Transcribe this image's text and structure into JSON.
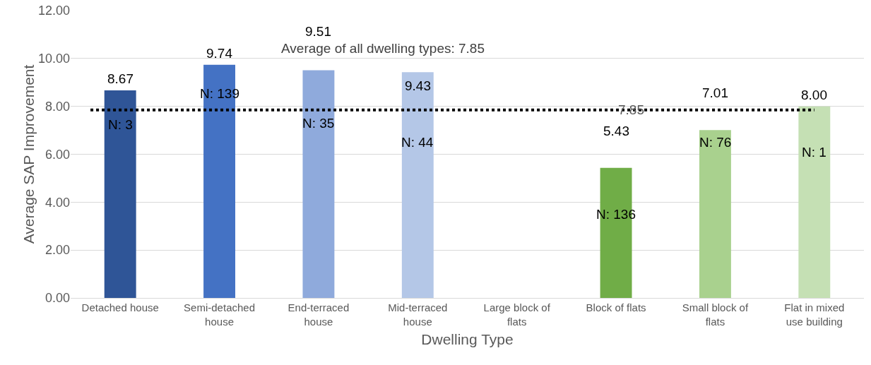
{
  "chart_data": {
    "type": "bar",
    "xlabel": "Dwelling Type",
    "ylabel": "Average SAP Improvement",
    "categories": [
      "Detached house",
      "Semi-detached house",
      "End-terraced house",
      "Mid-terraced house",
      "Large block of flats",
      "Block of flats",
      "Small block of flats",
      "Flat in mixed use building"
    ],
    "values": [
      8.67,
      9.74,
      9.51,
      9.43,
      null,
      5.43,
      7.01,
      8.0
    ],
    "colors": [
      "#2f5597",
      "#4472c4",
      "#8faadc",
      "#b4c7e7",
      "#b4c7e7",
      "#70ad47",
      "#a9d18e",
      "#c5e0b4"
    ],
    "value_labels": [
      "8.67",
      "9.74",
      "9.51",
      "9.43",
      null,
      "5.43",
      "7.01",
      "8.00"
    ],
    "ylim": [
      0,
      12
    ],
    "yticks": [
      {
        "value": 0,
        "label": "0.00"
      },
      {
        "value": 2,
        "label": "2.00"
      },
      {
        "value": 4,
        "label": "4.00"
      },
      {
        "value": 6,
        "label": "6.00"
      },
      {
        "value": 8,
        "label": "8.00"
      },
      {
        "value": 10,
        "label": "10.00"
      },
      {
        "value": 12,
        "label": "12.00"
      }
    ],
    "grid": "y",
    "ref_lines": [
      {
        "axis": "y",
        "value": 7.85,
        "label": "7.85",
        "color": "#000000",
        "line_style": "dotted"
      }
    ],
    "annotations": [
      "Average of all dwelling types: 7.85",
      "N: 3",
      "N: 139",
      "N: 35",
      "N: 44",
      "N: 136",
      "N: 76",
      "N: 1"
    ]
  }
}
